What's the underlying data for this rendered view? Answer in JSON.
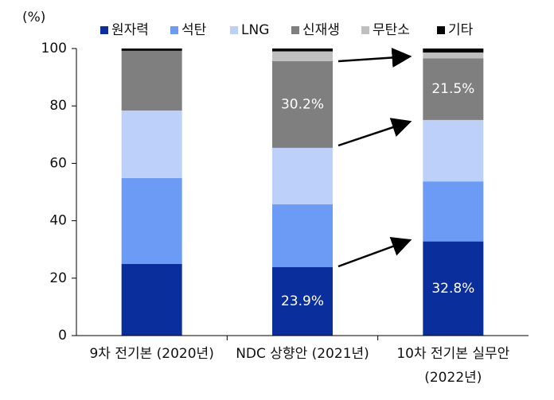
{
  "chart_data": {
    "type": "stacked-bar",
    "y_label": "(%)",
    "categories": [
      "9차 전기본 (2020년)",
      "NDC 상향안 (2021년)",
      "10차 전기본 실무안 (2022년)"
    ],
    "series": [
      {
        "name": "원자력",
        "color": "#0a2f9c",
        "values": [
          25.0,
          23.9,
          32.8
        ],
        "value_labels": [
          null,
          "23.9%",
          "32.8%"
        ]
      },
      {
        "name": "석탄",
        "color": "#6b9bf5",
        "values": [
          29.9,
          21.8,
          20.9
        ]
      },
      {
        "name": "LNG",
        "color": "#bdd0f9",
        "values": [
          23.5,
          19.7,
          21.4
        ]
      },
      {
        "name": "신재생",
        "color": "#7f7f7f",
        "values": [
          20.8,
          30.2,
          21.5
        ],
        "value_labels": [
          null,
          "30.2%",
          "21.5%"
        ]
      },
      {
        "name": "무탄소",
        "color": "#bfbfbf",
        "values": [
          0,
          3.4,
          2.0
        ]
      },
      {
        "name": "기타",
        "color": "#000000",
        "values": [
          0.8,
          1.0,
          1.4
        ]
      }
    ],
    "ylim": [
      0,
      100
    ],
    "yticks": [
      0,
      20,
      40,
      60,
      80,
      100
    ]
  }
}
